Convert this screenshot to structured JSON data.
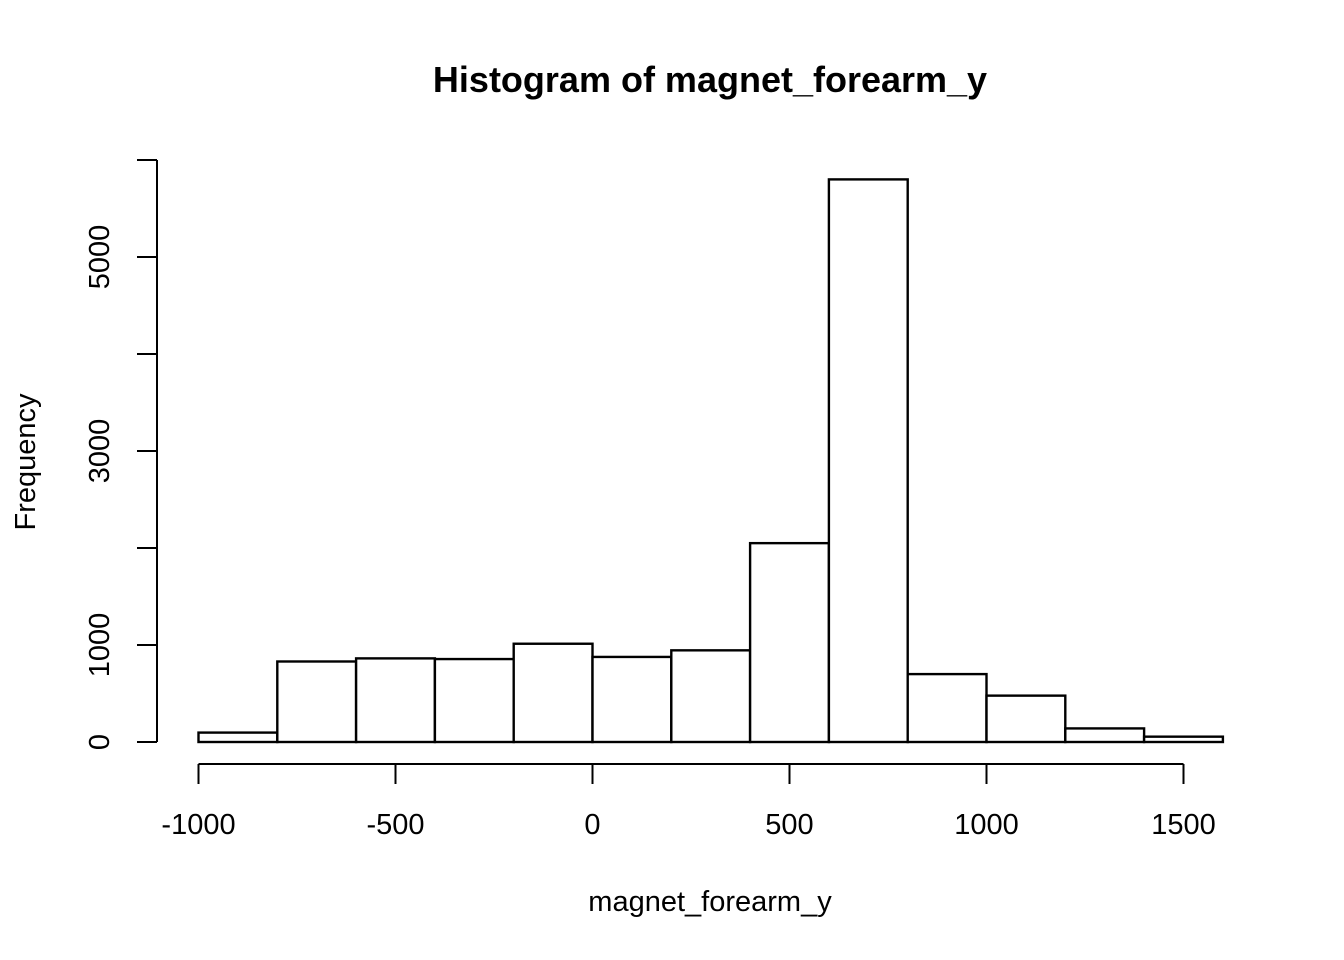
{
  "chart_data": {
    "type": "bar",
    "title": "Histogram of magnet_forearm_y",
    "xlabel": "magnet_forearm_y",
    "ylabel": "Frequency",
    "bins": [
      {
        "start": -1000,
        "end": -800,
        "count": 97
      },
      {
        "start": -800,
        "end": -600,
        "count": 830
      },
      {
        "start": -600,
        "end": -400,
        "count": 862
      },
      {
        "start": -400,
        "end": -200,
        "count": 855
      },
      {
        "start": -200,
        "end": 0,
        "count": 1013
      },
      {
        "start": 0,
        "end": 200,
        "count": 877
      },
      {
        "start": 200,
        "end": 400,
        "count": 945
      },
      {
        "start": 400,
        "end": 600,
        "count": 2050
      },
      {
        "start": 600,
        "end": 800,
        "count": 5800
      },
      {
        "start": 800,
        "end": 1000,
        "count": 700
      },
      {
        "start": 1000,
        "end": 1200,
        "count": 478
      },
      {
        "start": 1200,
        "end": 1400,
        "count": 140
      },
      {
        "start": 1400,
        "end": 1600,
        "count": 55
      }
    ],
    "x_ticks": [
      -1000,
      -500,
      0,
      500,
      1000,
      1500
    ],
    "x_tick_labels": [
      "-1000",
      "-500",
      "0",
      "500",
      "1000",
      "1500"
    ],
    "y_ticks": [
      0,
      1000,
      2000,
      3000,
      4000,
      5000,
      6000
    ],
    "y_tick_labels": [
      "0",
      "1000",
      "",
      "3000",
      "",
      "5000",
      ""
    ],
    "xlim": [
      -1000,
      1600
    ],
    "ylim": [
      0,
      6000
    ],
    "grid": false,
    "colors": {
      "bar_fill": "#ffffff",
      "bar_stroke": "#000000"
    }
  }
}
